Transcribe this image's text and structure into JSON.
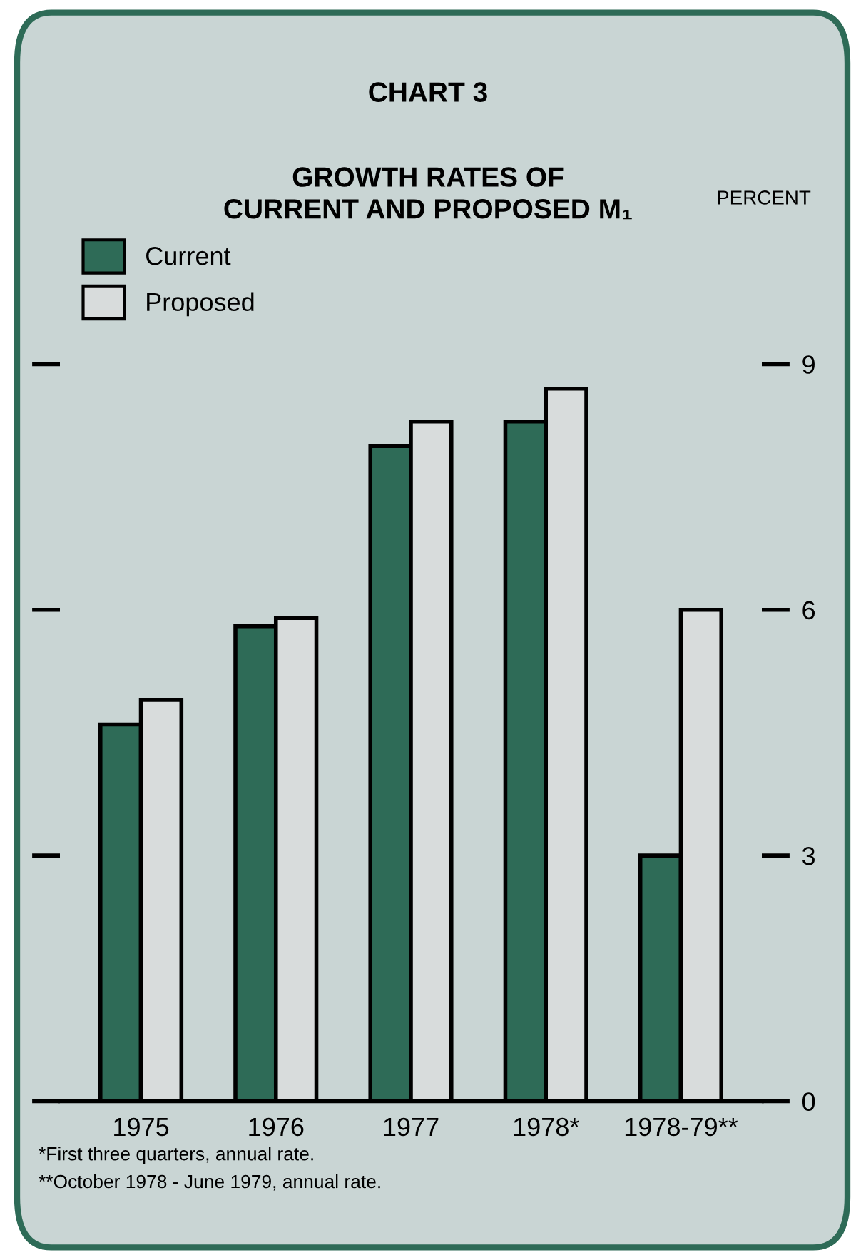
{
  "chart_data": {
    "type": "bar",
    "title": "CHART 3",
    "subtitle": "GROWTH RATES OF\nCURRENT AND PROPOSED M₁",
    "ylabel": "PERCENT",
    "categories": [
      "1975",
      "1976",
      "1977",
      "1978*",
      "1978-79**"
    ],
    "series": [
      {
        "name": "Current",
        "color": "#2e6b57",
        "values": [
          4.6,
          5.8,
          8.0,
          8.3,
          3.0
        ]
      },
      {
        "name": "Proposed",
        "color": "#d8dcdc",
        "values": [
          4.9,
          5.9,
          8.3,
          8.7,
          6.0
        ]
      }
    ],
    "ylim": [
      0,
      10
    ],
    "yticks": [
      0,
      3,
      6,
      9
    ],
    "grid": false,
    "legend": "top left",
    "annotations": [
      "*First three quarters, annual rate.",
      "**October 1978 - June 1979, annual rate."
    ]
  }
}
